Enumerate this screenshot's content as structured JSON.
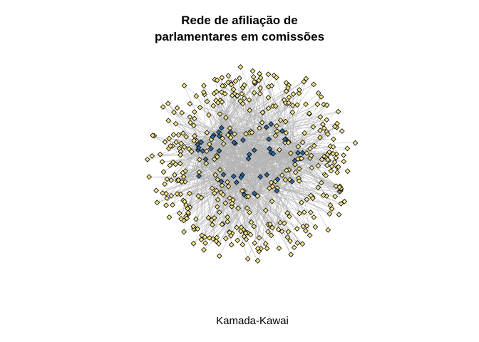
{
  "figure": {
    "title_lines": [
      "Rede de afiliação de",
      "parlamentares em comissões"
    ],
    "subtitle": "Kamada-Kawai"
  },
  "network": {
    "layout": "kamada-kawai",
    "node_shape": "diamond",
    "node_types": [
      {
        "role": "parliamentarian",
        "fill": "#F4E58C",
        "stroke": "#000000",
        "approx_count": 420
      },
      {
        "role": "committee",
        "fill": "#2E6DA4",
        "stroke": "#000000",
        "approx_count": 45
      }
    ],
    "edge_color": "#B4B4B4",
    "node_label_display": false
  }
}
